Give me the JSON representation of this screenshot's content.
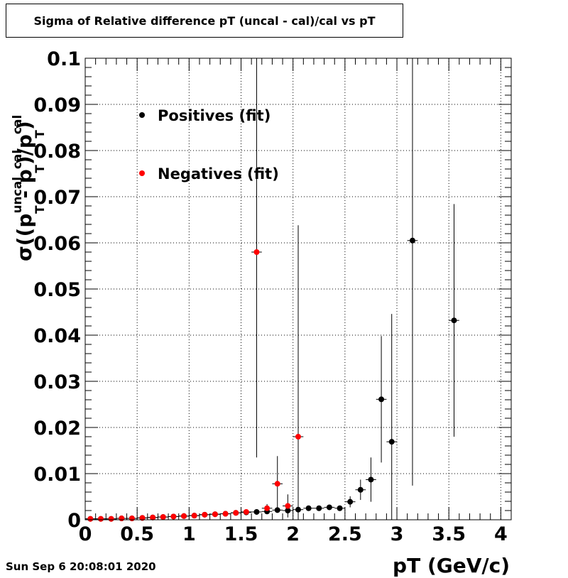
{
  "title": "Sigma of Relative difference pT (uncal - cal)/cal vs pT",
  "timestamp": "Sun Sep  6 20:08:01 2020",
  "chart_data": {
    "type": "scatter",
    "xlabel": "pT (GeV/c)",
    "ylabel": {
      "pre": "σ((p",
      "sup1": "uncal",
      "sub1": "T",
      "mid": " - p",
      "sup2": "cal",
      "sub2": "T",
      "mid2": ")/p",
      "sup3": "cal",
      "sub3": "T",
      "post": ")"
    },
    "xlim": [
      0,
      4.1
    ],
    "ylim": [
      0,
      0.1
    ],
    "xticks": [
      0,
      0.5,
      1,
      1.5,
      2,
      2.5,
      3,
      3.5,
      4
    ],
    "xtick_labels": [
      "0",
      "0.5",
      "1",
      "1.5",
      "2",
      "2.5",
      "3",
      "3.5",
      "4"
    ],
    "yticks": [
      0,
      0.01,
      0.02,
      0.03,
      0.04,
      0.05,
      0.06,
      0.07,
      0.08,
      0.09,
      0.1
    ],
    "ytick_labels": [
      "0",
      "0.01",
      "0.02",
      "0.03",
      "0.04",
      "0.05",
      "0.06",
      "0.07",
      "0.08",
      "0.09",
      "0.1"
    ],
    "grid": true,
    "legend_position": "top-left",
    "series": [
      {
        "name": "Positives (fit)",
        "color": "#000000",
        "points": [
          {
            "x": 0.05,
            "y": 0.0002,
            "err": 0.0001
          },
          {
            "x": 0.15,
            "y": 0.0002,
            "err": 0.0001
          },
          {
            "x": 0.25,
            "y": 0.0002,
            "err": 0.0001
          },
          {
            "x": 0.35,
            "y": 0.0003,
            "err": 0.0001
          },
          {
            "x": 0.45,
            "y": 0.0003,
            "err": 0.0001
          },
          {
            "x": 0.55,
            "y": 0.0004,
            "err": 0.0001
          },
          {
            "x": 0.65,
            "y": 0.0005,
            "err": 0.0001
          },
          {
            "x": 0.75,
            "y": 0.0006,
            "err": 0.0001
          },
          {
            "x": 0.85,
            "y": 0.0007,
            "err": 0.0001
          },
          {
            "x": 0.95,
            "y": 0.0008,
            "err": 0.0001
          },
          {
            "x": 1.05,
            "y": 0.0009,
            "err": 0.0001
          },
          {
            "x": 1.15,
            "y": 0.0011,
            "err": 0.0001
          },
          {
            "x": 1.25,
            "y": 0.0012,
            "err": 0.0001
          },
          {
            "x": 1.35,
            "y": 0.0013,
            "err": 0.0002
          },
          {
            "x": 1.45,
            "y": 0.0015,
            "err": 0.0002
          },
          {
            "x": 1.55,
            "y": 0.0016,
            "err": 0.0002
          },
          {
            "x": 1.65,
            "y": 0.0017,
            "err": 0.0003
          },
          {
            "x": 1.75,
            "y": 0.0018,
            "err": 0.0003
          },
          {
            "x": 1.85,
            "y": 0.0021,
            "err": 0.0004
          },
          {
            "x": 1.95,
            "y": 0.002,
            "err": 0.0004
          },
          {
            "x": 2.05,
            "y": 0.0022,
            "err": 0.0004
          },
          {
            "x": 2.15,
            "y": 0.0025,
            "err": 0.0004
          },
          {
            "x": 2.25,
            "y": 0.0025,
            "err": 0.0004
          },
          {
            "x": 2.35,
            "y": 0.0027,
            "err": 0.0005
          },
          {
            "x": 2.45,
            "y": 0.0025,
            "err": 0.0005
          },
          {
            "x": 2.55,
            "y": 0.0039,
            "err": 0.0012
          },
          {
            "x": 2.65,
            "y": 0.0065,
            "err": 0.0022
          },
          {
            "x": 2.75,
            "y": 0.0087,
            "err": 0.0048
          },
          {
            "x": 2.85,
            "y": 0.0261,
            "err": 0.0137
          },
          {
            "x": 2.95,
            "y": 0.0169,
            "err": 0.0277
          },
          {
            "x": 3.15,
            "y": 0.0605,
            "err": 0.0531
          },
          {
            "x": 3.55,
            "y": 0.0432,
            "err": 0.0252
          }
        ]
      },
      {
        "name": "Negatives (fit)",
        "color": "#ff0000",
        "points": [
          {
            "x": 0.05,
            "y": 0.0002,
            "err": 0.0001
          },
          {
            "x": 0.15,
            "y": 0.0002,
            "err": 0.0001
          },
          {
            "x": 0.25,
            "y": 0.0002,
            "err": 0.0001
          },
          {
            "x": 0.35,
            "y": 0.0003,
            "err": 0.0001
          },
          {
            "x": 0.45,
            "y": 0.0003,
            "err": 0.0001
          },
          {
            "x": 0.55,
            "y": 0.0004,
            "err": 0.0001
          },
          {
            "x": 0.65,
            "y": 0.0005,
            "err": 0.0001
          },
          {
            "x": 0.75,
            "y": 0.0006,
            "err": 0.0001
          },
          {
            "x": 0.85,
            "y": 0.0007,
            "err": 0.0001
          },
          {
            "x": 0.95,
            "y": 0.0008,
            "err": 0.0001
          },
          {
            "x": 1.05,
            "y": 0.0009,
            "err": 0.0001
          },
          {
            "x": 1.15,
            "y": 0.0011,
            "err": 0.0001
          },
          {
            "x": 1.25,
            "y": 0.0012,
            "err": 0.0001
          },
          {
            "x": 1.35,
            "y": 0.0013,
            "err": 0.0002
          },
          {
            "x": 1.45,
            "y": 0.0015,
            "err": 0.0002
          },
          {
            "x": 1.55,
            "y": 0.0017,
            "err": 0.0002
          },
          {
            "x": 1.65,
            "y": 0.058,
            "err": 0.0445
          },
          {
            "x": 1.75,
            "y": 0.0025,
            "err": 0.0009
          },
          {
            "x": 1.85,
            "y": 0.0078,
            "err": 0.006
          },
          {
            "x": 1.95,
            "y": 0.003,
            "err": 0.0025
          },
          {
            "x": 2.05,
            "y": 0.018,
            "err": 0.0458
          }
        ]
      }
    ]
  }
}
